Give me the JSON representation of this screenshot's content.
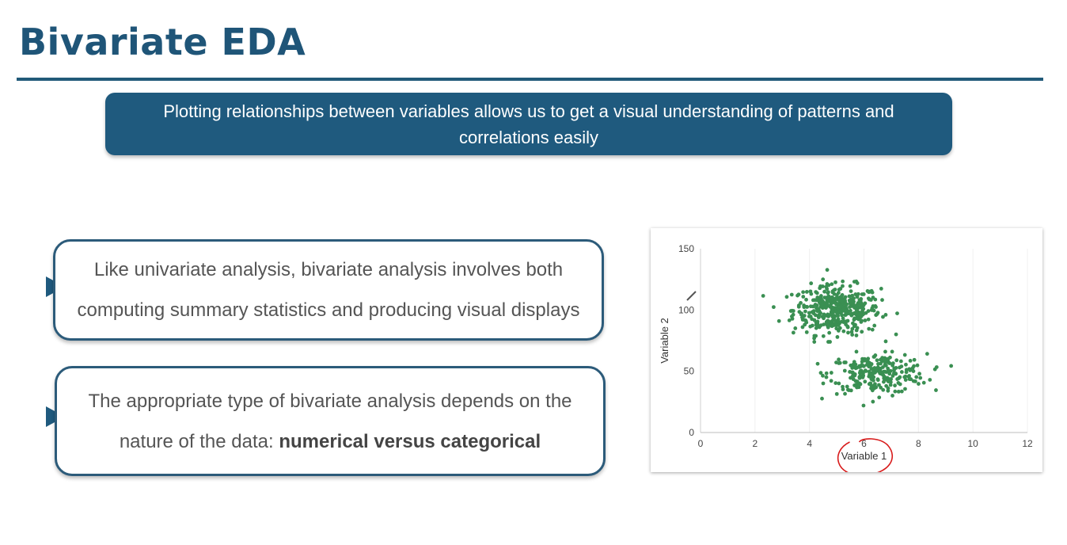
{
  "slide": {
    "title": "Bivariate EDA",
    "banner": "Plotting relationships between variables allows us to get a visual understanding of patterns and correlations easily",
    "card1": "Like univariate analysis, bivariate analysis involves both computing summary statistics and producing visual displays",
    "card2_prefix": "The appropriate type of bivariate analysis depends on the nature of the data: ",
    "card2_bold": "numerical versus categorical"
  },
  "colors": {
    "primary": "#1f5a7e",
    "point": "#3a8f52",
    "annotation": "#d81b1b"
  },
  "chart_data": {
    "type": "scatter",
    "xlabel": "Variable 1",
    "ylabel": "Variable 2",
    "xlim": [
      0,
      12
    ],
    "ylim": [
      0,
      150
    ],
    "xticks": [
      0,
      2,
      4,
      6,
      8,
      10,
      12
    ],
    "yticks": [
      0,
      50,
      100,
      150
    ],
    "series": [
      {
        "cluster": 1,
        "center": [
          5.0,
          100
        ],
        "spread": [
          0.8,
          10
        ],
        "n": 420,
        "x_range": [
          2.3,
          7.5
        ],
        "y_range": [
          74,
          133
        ]
      },
      {
        "cluster": 2,
        "center": [
          6.5,
          48
        ],
        "spread": [
          0.9,
          8
        ],
        "n": 260,
        "x_range": [
          4.3,
          9.2
        ],
        "y_range": [
          22,
          66
        ]
      }
    ],
    "annotation": "red hand-drawn circle around x-axis label"
  }
}
